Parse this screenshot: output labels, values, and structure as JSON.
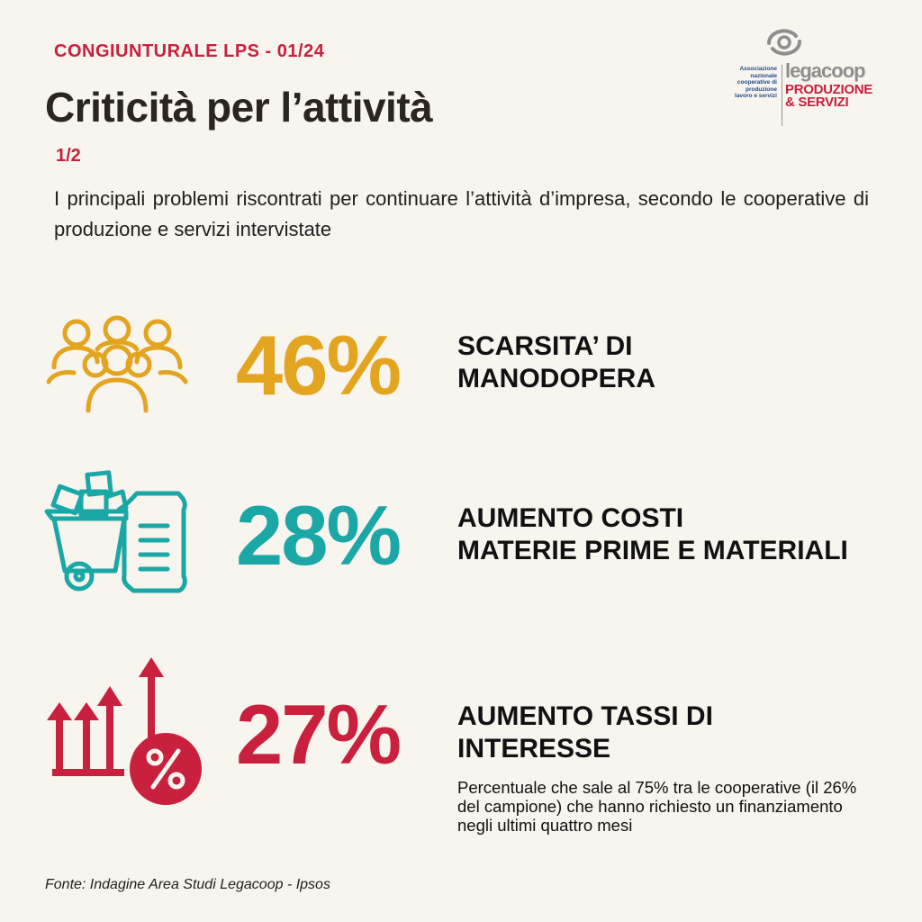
{
  "header": {
    "eyebrow": "CONGIUNTURALE LPS - 01/24",
    "title": "Criticità per l’attività",
    "part": "1/2",
    "intro": "I principali problemi riscontrati per continuare l’attività d’impresa, secondo le cooperative di produzione e servizi intervistate"
  },
  "logo": {
    "association": "Associazione nazionale cooperative di produzione lavoro e servizi",
    "brand": "legacoop",
    "sub_line1": "PRODUZIONE",
    "sub_line2": "& SERVIZI"
  },
  "items": [
    {
      "value": "46%",
      "label_line1": "SCARSITA’ DI",
      "label_line2": "MANODOPERA",
      "color": "#e3a51f",
      "icon": "people-group-icon"
    },
    {
      "value": "28%",
      "label_line1": "AUMENTO COSTI",
      "label_line2": "MATERIE PRIME E MATERIALI",
      "color": "#1aa7a6",
      "icon": "materials-cart-icon"
    },
    {
      "value": "27%",
      "label_line1": "AUMENTO TASSI DI",
      "label_line2": "INTERESSE",
      "color": "#c8203d",
      "icon": "interest-rate-icon"
    }
  ],
  "note": "Percentuale che sale al 75% tra le cooperative (il 26% del campione)  che hanno richiesto un finanziamento negli ultimi quattro mesi",
  "source": "Fonte: Indagine Area Studi Legacoop - Ipsos"
}
